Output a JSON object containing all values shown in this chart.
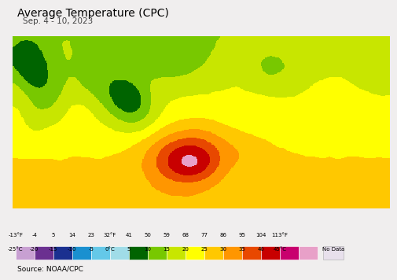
{
  "title": "Average Temperature (CPC)",
  "subtitle": "Sep. 4 - 10, 2023",
  "source": "Source: NOAA/CPC",
  "f_labels": [
    "-13°F",
    "-4",
    "5",
    "14",
    "23",
    "32°F",
    "41",
    "50",
    "59",
    "68",
    "77",
    "86",
    "95",
    "104",
    "113°F"
  ],
  "c_labels": [
    "-25°C",
    "-20",
    "-15",
    "-10",
    "-5",
    "0°C",
    "5",
    "10",
    "15",
    "20",
    "25",
    "30",
    "35",
    "40",
    "45°C"
  ],
  "legend_colors": [
    "#c8a0d2",
    "#6b3090",
    "#1a3090",
    "#1a90d0",
    "#64c8e8",
    "#a0dce8",
    "#006400",
    "#78c800",
    "#c8e600",
    "#ffff00",
    "#ffc800",
    "#ff9600",
    "#e84800",
    "#c80000",
    "#c8006e",
    "#e8a0c8"
  ],
  "bounds_c": [
    -25,
    -20,
    -15,
    -10,
    -5,
    0,
    5,
    10,
    15,
    20,
    25,
    30,
    35,
    40,
    45,
    50
  ],
  "no_data_color": "#e8e0ec",
  "bg_color": "#f0eeee",
  "ocean_color": "#c8e8f0",
  "land_outside_color": "#e8e4e0",
  "state_edge_color": "#808080",
  "country_edge_color": "#000000"
}
